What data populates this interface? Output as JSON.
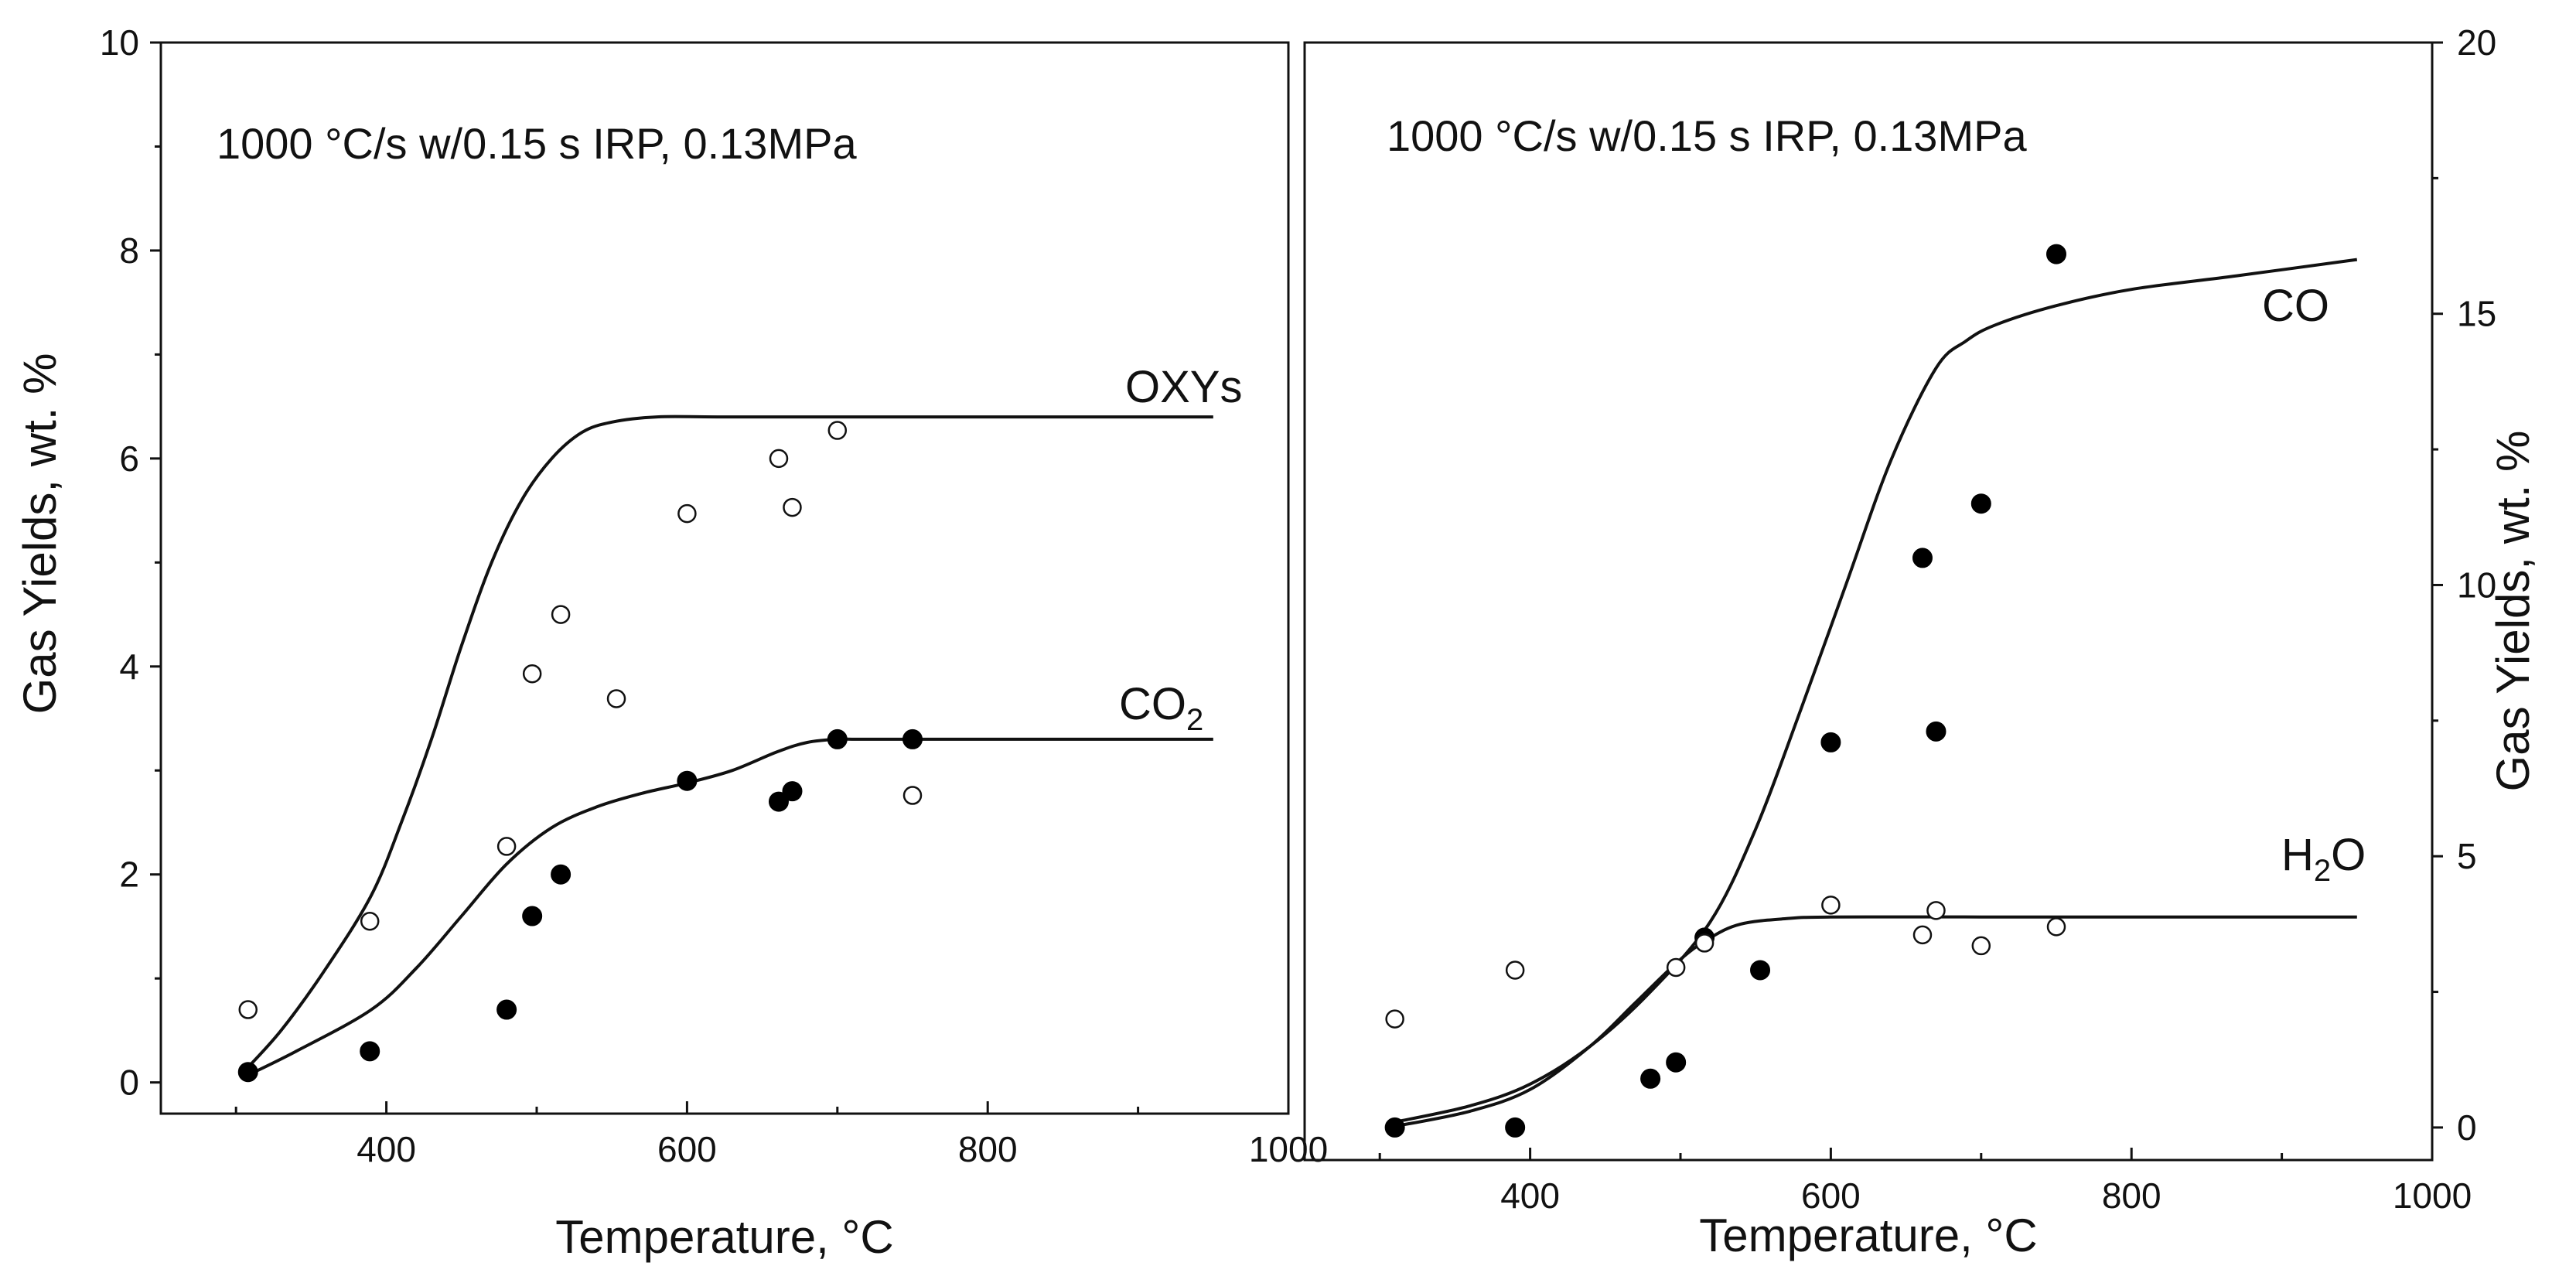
{
  "chart_data": [
    {
      "type": "line+scatter",
      "annotation": "1000 °C/s w/0.15 s IRP, 0.13MPa",
      "xlabel": "Temperature, °C",
      "ylabel": "Gas Yields, wt. %",
      "xlim": [
        250,
        1000
      ],
      "ylim": [
        -0.3,
        10
      ],
      "xticks": [
        400,
        600,
        800,
        1000
      ],
      "yticks": [
        0,
        2,
        4,
        6,
        8,
        10
      ],
      "series": [
        {
          "name": "OXYs",
          "label": "OXYs",
          "kind": "model-line",
          "x": [
            305,
            330,
            360,
            390,
            410,
            430,
            450,
            470,
            490,
            510,
            530,
            550,
            580,
            620,
            700,
            800,
            950
          ],
          "y": [
            0.1,
            0.5,
            1.1,
            1.8,
            2.5,
            3.3,
            4.2,
            5.0,
            5.6,
            6.0,
            6.25,
            6.35,
            6.4,
            6.4,
            6.4,
            6.4,
            6.4
          ]
        },
        {
          "name": "CO2",
          "label_main": "CO",
          "label_sub": "2",
          "kind": "model-line",
          "x": [
            305,
            340,
            390,
            420,
            450,
            480,
            510,
            540,
            570,
            600,
            630,
            660,
            680,
            700,
            720,
            800,
            950
          ],
          "y": [
            0.05,
            0.3,
            0.7,
            1.1,
            1.6,
            2.1,
            2.45,
            2.65,
            2.78,
            2.88,
            3.0,
            3.18,
            3.27,
            3.3,
            3.3,
            3.3,
            3.3
          ]
        },
        {
          "name": "OXYs data",
          "kind": "open-markers",
          "x": [
            308,
            389,
            480,
            497,
            516,
            553,
            600,
            661,
            670,
            700,
            750
          ],
          "y": [
            0.7,
            1.55,
            2.27,
            3.93,
            4.5,
            3.69,
            5.47,
            6.0,
            5.53,
            6.27,
            2.76
          ]
        },
        {
          "name": "CO2 data",
          "kind": "filled-markers",
          "x": [
            308,
            389,
            480,
            497,
            516,
            600,
            661,
            670,
            700,
            750
          ],
          "y": [
            0.1,
            0.3,
            0.7,
            1.6,
            2.0,
            2.9,
            2.7,
            2.8,
            3.3,
            3.3
          ]
        }
      ]
    },
    {
      "type": "line+scatter",
      "annotation": "1000 °C/s w/0.15 s IRP, 0.13MPa",
      "xlabel": "Temperature, °C",
      "ylabel": "Gas Yields, wt. %",
      "xlim": [
        250,
        1000
      ],
      "ylim": [
        -0.6,
        20
      ],
      "xticks": [
        400,
        600,
        800,
        1000
      ],
      "yticks": [
        0,
        5,
        10,
        15,
        20
      ],
      "series": [
        {
          "name": "CO",
          "label": "CO",
          "kind": "model-line",
          "x": [
            310,
            360,
            400,
            440,
            480,
            520,
            550,
            580,
            610,
            640,
            670,
            690,
            710,
            750,
            800,
            870,
            950
          ],
          "y": [
            0.1,
            0.4,
            0.8,
            1.5,
            2.5,
            3.8,
            5.5,
            7.7,
            10.0,
            12.3,
            14.0,
            14.5,
            14.8,
            15.15,
            15.45,
            15.7,
            16.0
          ]
        },
        {
          "name": "H2O",
          "label_main": "H",
          "label_sub": "2",
          "label_tail": "O",
          "kind": "model-line",
          "x": [
            310,
            360,
            400,
            440,
            470,
            500,
            520,
            540,
            570,
            600,
            700,
            800,
            950
          ],
          "y": [
            0.02,
            0.3,
            0.7,
            1.5,
            2.3,
            3.1,
            3.5,
            3.75,
            3.85,
            3.88,
            3.88,
            3.88,
            3.88
          ]
        },
        {
          "name": "CO data",
          "kind": "filled-markers",
          "x": [
            310,
            390,
            480,
            497,
            516,
            553,
            600,
            661,
            670,
            700,
            750
          ],
          "y": [
            0.0,
            0.0,
            0.9,
            1.2,
            3.5,
            2.9,
            7.1,
            10.5,
            7.3,
            11.5,
            16.1
          ]
        },
        {
          "name": "H2O data",
          "kind": "open-markers",
          "x": [
            310,
            390,
            497,
            516,
            600,
            661,
            670,
            700,
            750
          ],
          "y": [
            2.0,
            2.9,
            2.95,
            3.4,
            4.1,
            3.55,
            4.0,
            3.35,
            3.7
          ]
        }
      ]
    }
  ]
}
